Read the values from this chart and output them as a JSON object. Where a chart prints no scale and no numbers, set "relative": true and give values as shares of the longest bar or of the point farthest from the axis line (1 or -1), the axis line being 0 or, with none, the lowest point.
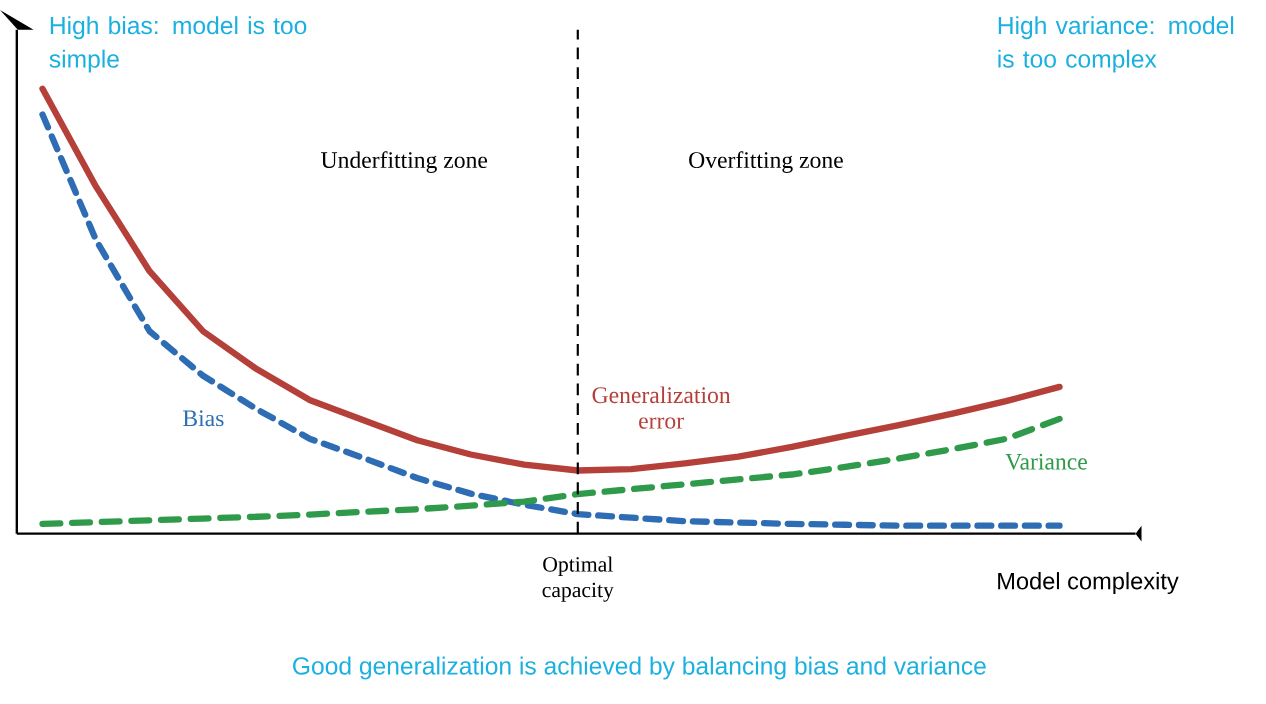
{
  "chart_data": {
    "type": "line",
    "relative": true,
    "xlabel": "Model complexity",
    "legend": false,
    "categories": [
      null,
      null,
      null,
      null,
      null,
      null,
      null,
      null,
      null,
      null,
      null,
      null,
      null,
      null,
      null,
      null,
      null,
      null,
      null,
      null
    ],
    "series": [
      {
        "name": "Generalization error",
        "color": "#b5403a",
        "line_style": "solid",
        "values": [
          1.0,
          0.78,
          0.59,
          0.455,
          0.37,
          0.3,
          0.255,
          0.21,
          0.178,
          0.155,
          0.142,
          0.145,
          0.158,
          0.173,
          0.195,
          0.22,
          0.244,
          0.27,
          0.298,
          0.33
        ]
      },
      {
        "name": "Bias",
        "color": "#2e6db4",
        "line_style": "dashed",
        "values": [
          0.942,
          0.66,
          0.455,
          0.355,
          0.28,
          0.213,
          0.17,
          0.125,
          0.09,
          0.065,
          0.044,
          0.036,
          0.028,
          0.025,
          0.022,
          0.02,
          0.018,
          0.018,
          0.018,
          0.018
        ]
      },
      {
        "name": "Variance",
        "color": "#2e9a4a",
        "line_style": "dashed",
        "values": [
          0.022,
          0.026,
          0.03,
          0.034,
          0.038,
          0.043,
          0.049,
          0.055,
          0.063,
          0.072,
          0.089,
          0.1,
          0.111,
          0.122,
          0.133,
          0.15,
          0.169,
          0.19,
          0.213,
          0.258
        ]
      }
    ],
    "annotations": [
      "High bias: model is too simple",
      "High variance: model is too complex",
      "Underfitting zone",
      "Overfitting zone",
      "Good generalization is achieved by balancing bias and variance",
      "Optimal capacity"
    ]
  }
}
